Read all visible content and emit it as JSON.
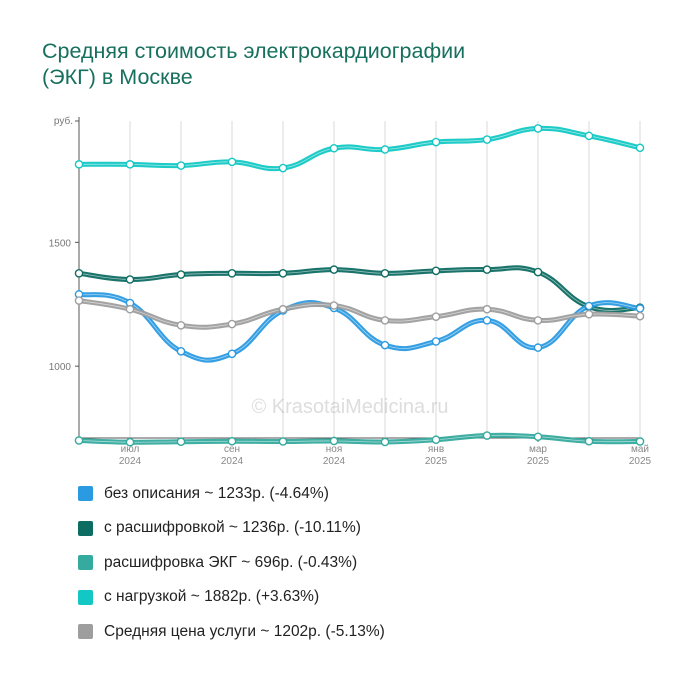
{
  "title_lines": [
    "Средняя стоимость электрокардиографии",
    "(ЭКГ) в Москве"
  ],
  "watermark": "© KrasotaiMedicina.ru",
  "colors": {
    "title": "#17705e",
    "axis": "#555555",
    "grid": "#d9d9d9"
  },
  "chart_data": {
    "type": "line",
    "ylim": [
      710,
      1990
    ],
    "y_unit_label": "руб.",
    "y_ticks": [
      1000,
      1500
    ],
    "x_ticks": [
      {
        "line1": "июл",
        "line2": "2024",
        "month_index": 1
      },
      {
        "line1": "сен",
        "line2": "2024",
        "month_index": 3
      },
      {
        "line1": "ноя",
        "line2": "2024",
        "month_index": 5
      },
      {
        "line1": "янв",
        "line2": "2025",
        "month_index": 7
      },
      {
        "line1": "мар",
        "line2": "2025",
        "month_index": 9
      },
      {
        "line1": "май",
        "line2": "2025",
        "month_index": 11
      }
    ],
    "x": [
      "2024-06",
      "2024-07",
      "2024-08",
      "2024-09",
      "2024-10",
      "2024-11",
      "2024-12",
      "2025-01",
      "2025-02",
      "2025-03",
      "2025-04",
      "2025-05"
    ],
    "series": [
      {
        "name": "без описания",
        "legend": "без описания ~ 1233р. (-4.64%)",
        "color": "#2a9ae1",
        "values": [
          1290,
          1255,
          1060,
          1050,
          1225,
          1235,
          1085,
          1100,
          1185,
          1075,
          1243,
          1233
        ]
      },
      {
        "name": "с расшифровкой",
        "legend": "с расшифровкой ~ 1236р. (-10.11%)",
        "color": "#0e6d63",
        "values": [
          1375,
          1350,
          1370,
          1375,
          1375,
          1390,
          1375,
          1385,
          1390,
          1380,
          1240,
          1236
        ]
      },
      {
        "name": "расшифровка ЭКГ",
        "legend": "расшифровка ЭКГ ~ 696р. (-0.43%)",
        "color": "#35aa9e",
        "values": [
          700,
          693,
          695,
          697,
          696,
          698,
          694,
          703,
          720,
          715,
          697,
          696
        ]
      },
      {
        "name": "с нагрузкой",
        "legend": "с нагрузкой ~ 1882р. (+3.63%)",
        "color": "#13c8c4",
        "values": [
          1815,
          1815,
          1810,
          1825,
          1800,
          1880,
          1875,
          1905,
          1915,
          1960,
          1930,
          1882
        ]
      },
      {
        "name": "Средняя цена услуги",
        "legend": "Средняя цена услуги ~ 1202р. (-5.13%)",
        "color": "#9e9e9e",
        "values": [
          1265,
          1230,
          1165,
          1170,
          1230,
          1245,
          1185,
          1200,
          1230,
          1185,
          1210,
          1202
        ]
      }
    ]
  }
}
